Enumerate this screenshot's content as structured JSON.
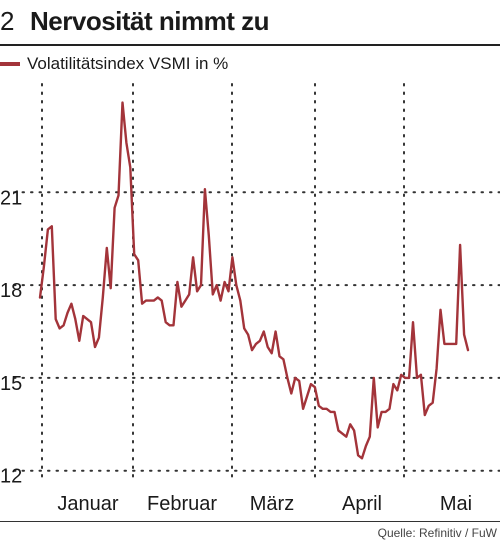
{
  "header": {
    "number": "2",
    "title": "Nervosität nimmt zu"
  },
  "legend": {
    "label": "Volatilitätsindex VSMI in %"
  },
  "source": "Quelle: Refinitiv / FuW",
  "colors": {
    "line": "#a3343a",
    "grid": "#333333",
    "text": "#1a1a1a"
  },
  "chart_data": {
    "type": "line",
    "title": "Nervosität nimmt zu",
    "xlabel": "",
    "ylabel": "",
    "ylim": [
      11.7,
      24.5
    ],
    "yticks": [
      12,
      15,
      18,
      21
    ],
    "ytick_labels": [
      "12",
      "15",
      "18",
      "21"
    ],
    "x_month_labels": [
      "Januar",
      "Februar",
      "März",
      "April",
      "Mai"
    ],
    "grid": true,
    "legend_position": "top-left",
    "series": [
      {
        "name": "Volatilitätsindex VSMI in %",
        "values": [
          17.6,
          18.6,
          19.8,
          19.9,
          16.9,
          16.6,
          16.7,
          17.1,
          17.4,
          16.9,
          16.2,
          17.0,
          16.9,
          16.8,
          16.0,
          16.3,
          17.6,
          19.2,
          17.9,
          20.5,
          20.9,
          23.9,
          22.6,
          21.8,
          19.0,
          18.8,
          17.4,
          17.5,
          17.5,
          17.5,
          17.6,
          17.5,
          16.8,
          16.7,
          16.7,
          18.1,
          17.3,
          17.5,
          17.7,
          18.9,
          17.8,
          18.0,
          21.1,
          19.6,
          17.7,
          18.0,
          17.5,
          18.1,
          17.8,
          18.9,
          18.0,
          17.5,
          16.6,
          16.4,
          15.9,
          16.1,
          16.2,
          16.5,
          16.0,
          15.8,
          16.5,
          15.7,
          15.6,
          15.0,
          14.5,
          15.0,
          14.9,
          14.0,
          14.4,
          14.8,
          14.7,
          14.1,
          14.0,
          14.0,
          13.9,
          13.9,
          13.3,
          13.2,
          13.1,
          13.5,
          13.3,
          12.5,
          12.4,
          12.8,
          13.1,
          15.0,
          13.4,
          13.9,
          13.9,
          14.0,
          14.8,
          14.6,
          15.1,
          15.0,
          15.0,
          16.8,
          15.0,
          15.1,
          13.8,
          14.1,
          14.2,
          15.3,
          17.2,
          16.1,
          16.1,
          16.1,
          16.1,
          19.3,
          16.4,
          15.9
        ]
      }
    ]
  }
}
